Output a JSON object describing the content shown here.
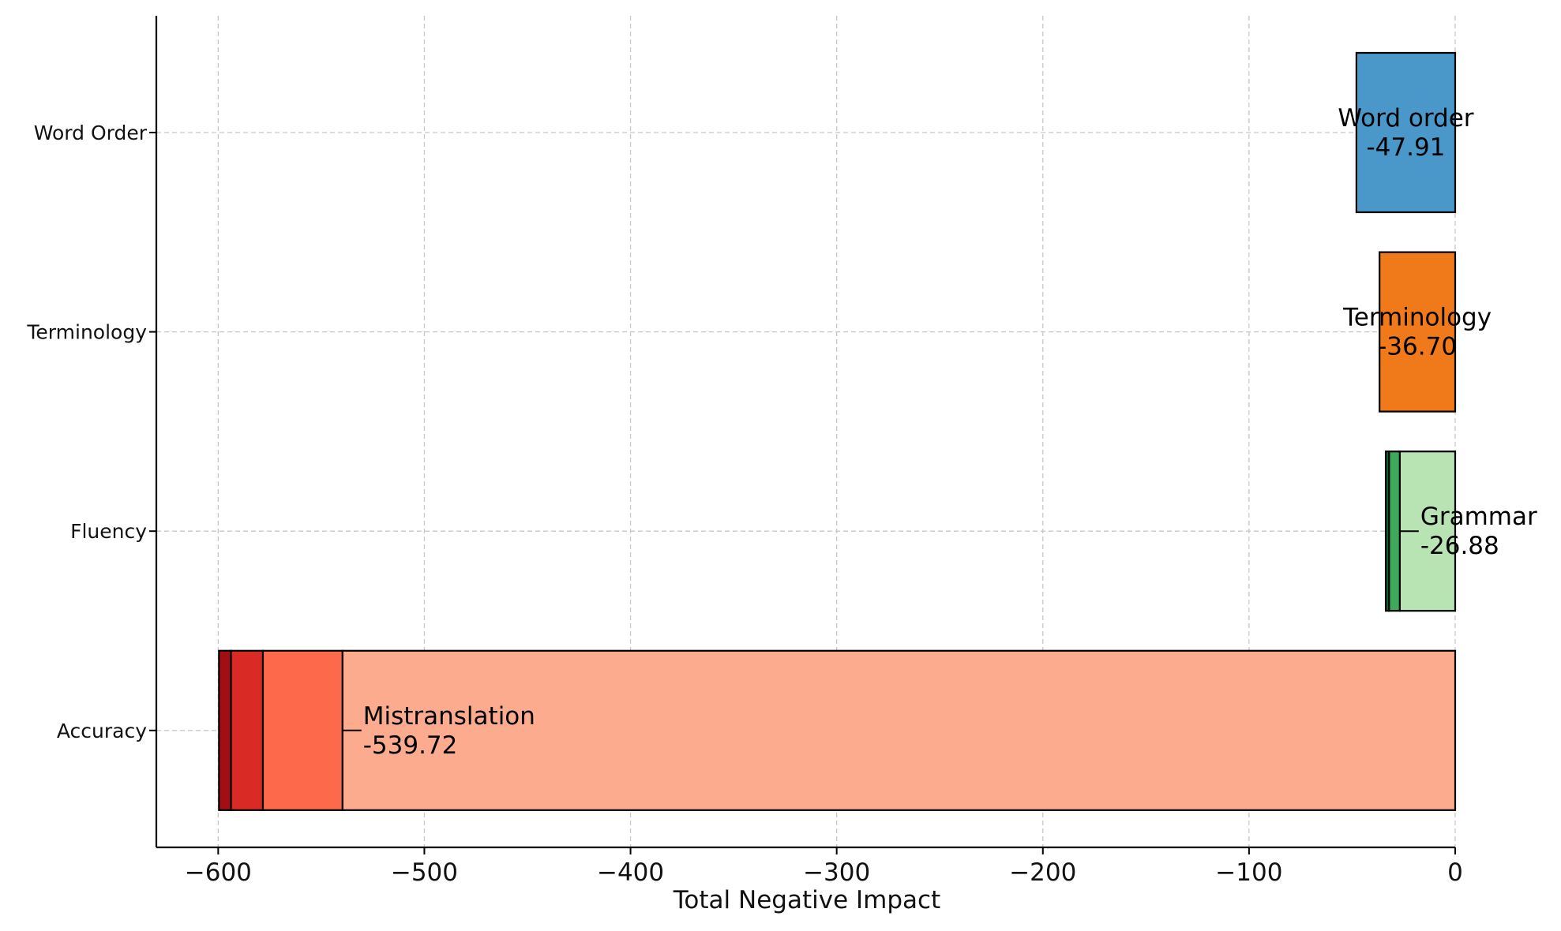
{
  "chart_data": {
    "type": "bar",
    "orientation": "horizontal",
    "stacked": true,
    "title": "",
    "xlabel": "Total Negative Impact",
    "ylabel": "",
    "xlim": [
      -630,
      0
    ],
    "xticks": [
      -600,
      -500,
      -400,
      -300,
      -200,
      -100,
      0
    ],
    "xtick_labels": [
      "−600",
      "−500",
      "−400",
      "−300",
      "−200",
      "−100",
      "0"
    ],
    "categories": [
      "Word Order",
      "Terminology",
      "Fluency",
      "Accuracy"
    ],
    "grid": true,
    "legend": "none",
    "bars": [
      {
        "category": "Word Order",
        "segments": [
          {
            "value": -47.91,
            "color": "#4a97c9",
            "label": "Word order",
            "value_label": "-47.91",
            "label_placement": "center"
          }
        ]
      },
      {
        "category": "Terminology",
        "segments": [
          {
            "value": -36.7,
            "color": "#f0791a",
            "label": "Terminology",
            "value_label": "-36.70",
            "label_placement": "center"
          }
        ]
      },
      {
        "category": "Fluency",
        "segments": [
          {
            "value": -26.88,
            "color": "#b8e3b2",
            "label": "Grammar",
            "value_label": "-26.88",
            "label_placement": "beyond"
          },
          {
            "value": -5.2,
            "color": "#3fa85b"
          },
          {
            "value": -1.6,
            "color": "#0c6a2b"
          }
        ]
      },
      {
        "category": "Accuracy",
        "segments": [
          {
            "value": -539.72,
            "color": "#fcab8f",
            "label": "Mistranslation",
            "value_label": "-539.72",
            "label_placement": "beyond"
          },
          {
            "value": -38.6,
            "color": "#fc6a4b"
          },
          {
            "value": -15.5,
            "color": "#da2a26"
          },
          {
            "value": -5.8,
            "color": "#a10f15"
          }
        ]
      }
    ]
  }
}
